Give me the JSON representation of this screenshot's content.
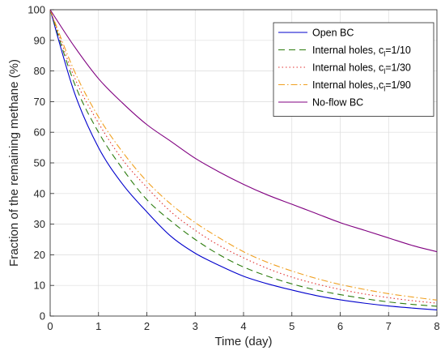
{
  "chart_data": {
    "type": "line",
    "xlabel": "Time (day)",
    "ylabel": "Fraction of the remaining methane (%)",
    "xlim": [
      0,
      8
    ],
    "ylim": [
      0,
      100
    ],
    "xticks": [
      "0",
      "1",
      "2",
      "3",
      "4",
      "5",
      "6",
      "7",
      "8"
    ],
    "yticks": [
      "0",
      "10",
      "20",
      "30",
      "40",
      "50",
      "60",
      "70",
      "80",
      "90",
      "100"
    ],
    "grid": true,
    "legend_position": "top-right",
    "x": [
      0,
      0.5,
      1,
      1.5,
      2,
      2.5,
      3,
      3.5,
      4,
      4.5,
      5,
      5.5,
      6,
      6.5,
      7,
      7.5,
      8
    ],
    "series": [
      {
        "name": "Open BC",
        "color": "#0000cc",
        "style": "solid",
        "values": [
          100,
          73,
          55,
          43,
          34,
          26,
          20.5,
          16.5,
          13,
          10.5,
          8.5,
          6.7,
          5.3,
          4.2,
          3.3,
          2.6,
          2
        ]
      },
      {
        "name": "Internal holes, c",
        "name_sub": "l",
        "name_tail": "=1/10",
        "color": "#2e7d0f",
        "style": "dash",
        "values": [
          100,
          76,
          60,
          48,
          38,
          31,
          25,
          20,
          16,
          13,
          10.5,
          8.5,
          7,
          5.7,
          4.6,
          3.8,
          3.2
        ]
      },
      {
        "name": "Internal holes, c",
        "name_sub": "l",
        "name_tail": "=1/30",
        "color": "#e03030",
        "style": "dot",
        "values": [
          100,
          78,
          63,
          51,
          42,
          34,
          28,
          23,
          19,
          15.5,
          12.7,
          10.5,
          8.7,
          7.2,
          6,
          5,
          4.2
        ]
      },
      {
        "name": "Internal holes,,c",
        "name_sub": "l",
        "name_tail": "=1/90",
        "color": "#f0a020",
        "style": "dashdot",
        "values": [
          100,
          80,
          65,
          53.5,
          44,
          36.5,
          30.5,
          25.5,
          21,
          17.5,
          14.7,
          12.3,
          10.3,
          8.7,
          7.3,
          6.2,
          5.2
        ]
      },
      {
        "name": "No-flow BC",
        "name_sub": "",
        "name_tail": "",
        "color": "#800080",
        "style": "solid",
        "values": [
          100,
          88,
          77.5,
          69.5,
          62.5,
          57,
          51.5,
          47,
          43,
          39.5,
          36.5,
          33.5,
          30.5,
          28,
          25.5,
          23,
          21
        ]
      }
    ]
  }
}
